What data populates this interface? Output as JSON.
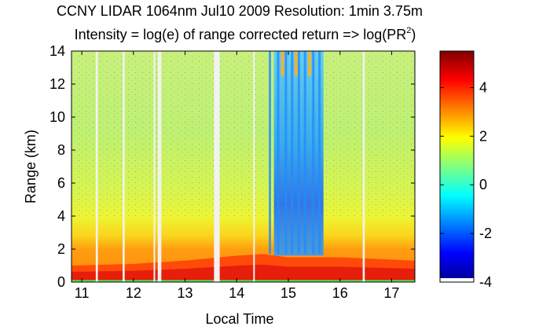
{
  "chart_data": {
    "type": "heatmap",
    "title": "CCNY LIDAR 1064nm Jul10 2009 Resolution: 1min 3.75m",
    "subtitle_prefix": "Intensity = log(e) of range corrected return => log(PR",
    "subtitle_superscript": "2",
    "subtitle_suffix": ")",
    "xlabel": "Local Time",
    "ylabel": "Range (km)",
    "xlim": [
      10.8,
      17.45
    ],
    "ylim": [
      0,
      14
    ],
    "x_ticks": [
      11,
      12,
      13,
      14,
      15,
      16,
      17
    ],
    "y_ticks": [
      0,
      2,
      4,
      6,
      8,
      10,
      12,
      14
    ],
    "colorbar": {
      "range": [
        -4,
        5.5
      ],
      "ticks": [
        -4,
        -2,
        0,
        2,
        4
      ],
      "tick_labels": [
        "-4",
        "-2",
        "0",
        "2",
        "4"
      ],
      "colormap": "jet"
    },
    "data_gaps": [
      {
        "start": 11.27,
        "end": 11.31
      },
      {
        "start": 11.79,
        "end": 11.83
      },
      {
        "start": 12.39,
        "end": 12.42
      },
      {
        "start": 12.47,
        "end": 12.54
      },
      {
        "start": 13.56,
        "end": 13.67
      },
      {
        "start": 14.32,
        "end": 14.35
      },
      {
        "start": 16.44,
        "end": 16.48
      }
    ],
    "boundary_layer_top_km": [
      {
        "x": 10.8,
        "y": 1.0
      },
      {
        "x": 12.0,
        "y": 1.1
      },
      {
        "x": 13.0,
        "y": 1.3
      },
      {
        "x": 14.0,
        "y": 1.6
      },
      {
        "x": 14.5,
        "y": 1.7
      },
      {
        "x": 15.0,
        "y": 1.5
      },
      {
        "x": 16.0,
        "y": 1.5
      },
      {
        "x": 17.45,
        "y": 1.3
      }
    ],
    "cloud_attenuation_interval": {
      "start": 14.72,
      "end": 15.68
    }
  }
}
